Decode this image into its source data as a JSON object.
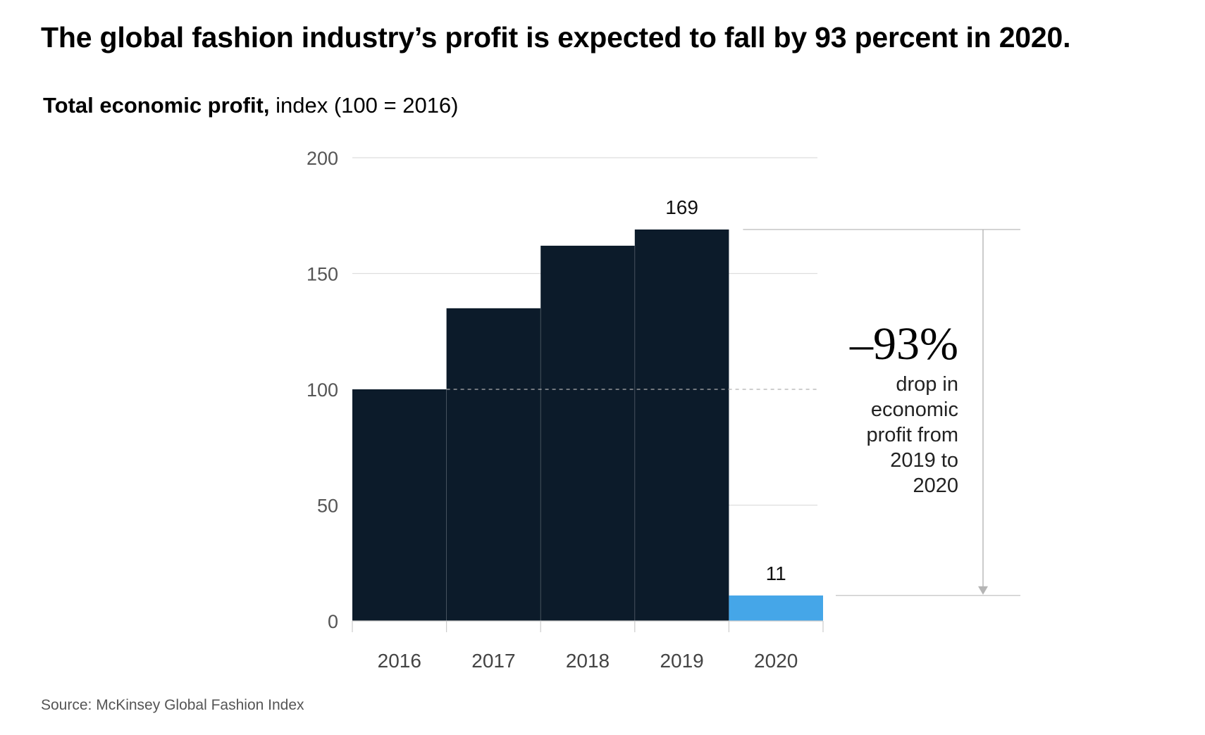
{
  "chart_data": {
    "type": "bar",
    "title": "The global fashion industry’s profit is expected to fall by 93 percent in 2020.",
    "subtitle_bold": "Total economic profit,",
    "subtitle_rest": " index (100 = 2016)",
    "categories": [
      "2016",
      "2017",
      "2018",
      "2019",
      "2020"
    ],
    "values": [
      100,
      135,
      162,
      169,
      11
    ],
    "data_labels": [
      {
        "category": "2019",
        "text": "169"
      },
      {
        "category": "2020",
        "text": "11"
      }
    ],
    "ylim": [
      0,
      200
    ],
    "yticks": [
      0,
      50,
      100,
      150,
      200
    ],
    "reference_line": 100,
    "xlabel": "",
    "ylabel": "",
    "bar_colors": [
      "#0c1b2a",
      "#0c1b2a",
      "#0c1b2a",
      "#0c1b2a",
      "#45a6e8"
    ],
    "callout": {
      "value": "–93%",
      "text_lines": [
        "drop in",
        "economic",
        "profit from",
        "2019 to",
        "2020"
      ]
    }
  },
  "source": "Source: McKinsey Global Fashion Index",
  "colors": {
    "dark_bar": "#0c1b2a",
    "highlight_bar": "#45a6e8",
    "gridline": "#dddddd",
    "arrow": "#b5b5b5"
  }
}
